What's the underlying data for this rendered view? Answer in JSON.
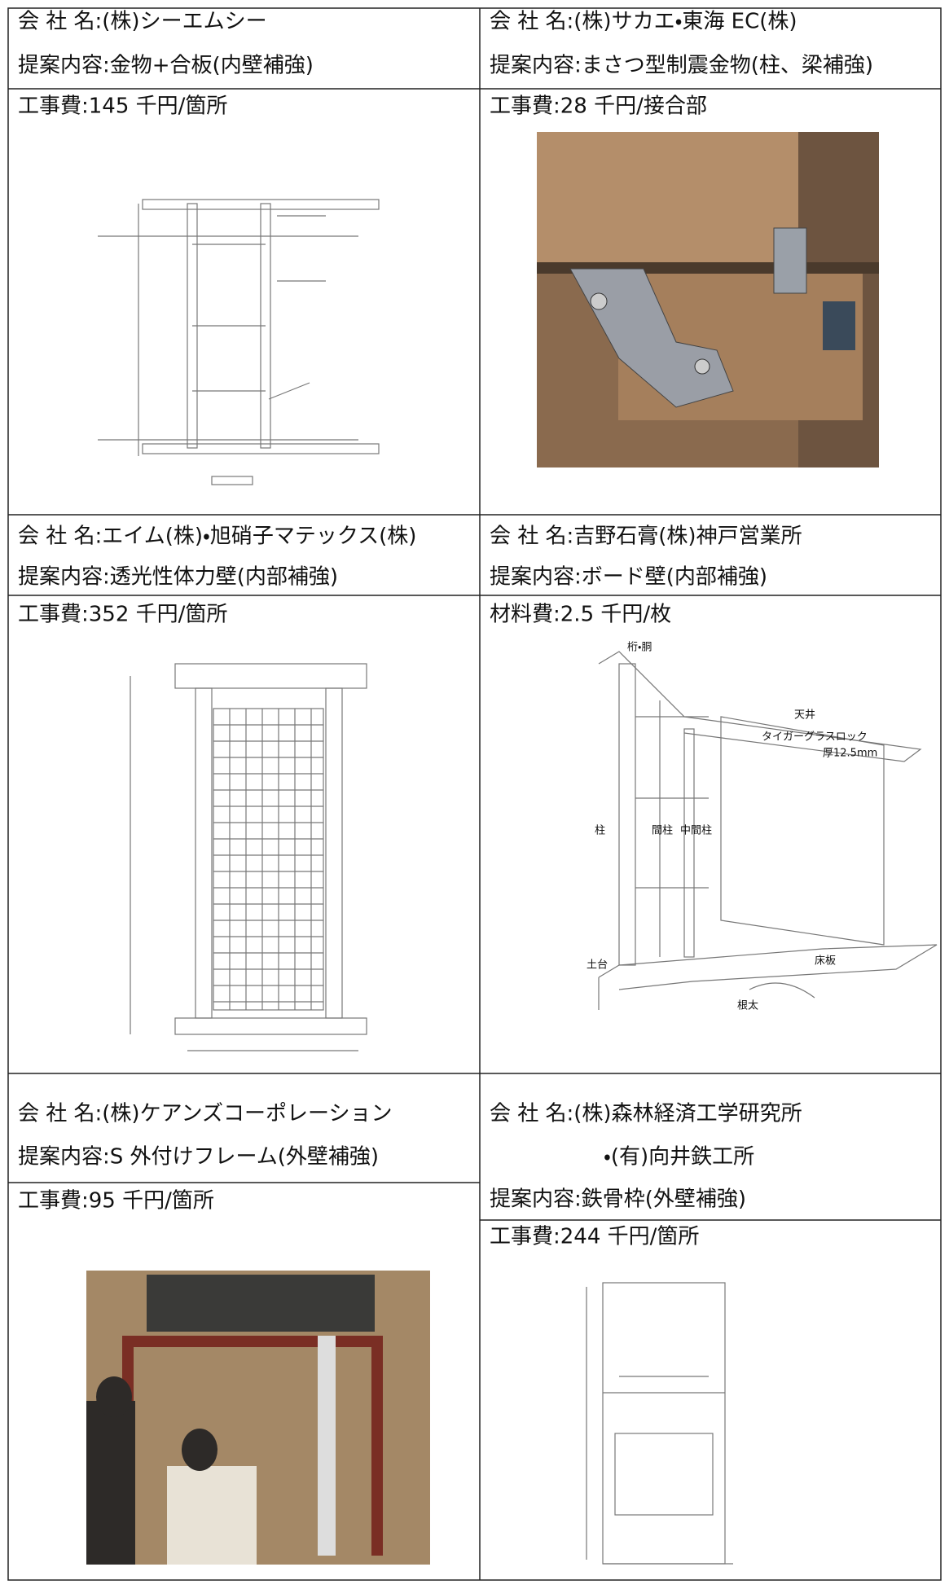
{
  "proposals": [
    {
      "company": [
        "会 社 名:(株)シーエムシー"
      ],
      "proposal": "提案内容:金物+合板(内壁補強)",
      "cost": "工事費:145 千円/箇所"
    },
    {
      "company": [
        "会 社 名:(株)サカエ・東海 EC(株)"
      ],
      "proposal": "提案内容:まさつ型制震金物(柱、梁補強)",
      "cost": "工事費:28 千円/接合部"
    },
    {
      "company": [
        "会 社 名:エイム(株)・旭硝子マテックス(株)"
      ],
      "proposal": "提案内容:透光性体力壁(内部補強)",
      "cost": "工事費:352 千円/箇所"
    },
    {
      "company": [
        "会 社 名:吉野石膏(株)神戸営業所"
      ],
      "proposal": "提案内容:ボード壁(内部補強)",
      "cost": "材料費:2.5 千円/枚",
      "figure_labels": [
        "桁・胴",
        "天井",
        "柱",
        "間柱",
        "中間柱",
        "土台",
        "床板",
        "根太",
        "タイガーグラスロック",
        "厚12.5mm"
      ]
    },
    {
      "company": [
        "会 社 名:(株)ケアンズコーポレーション"
      ],
      "proposal": "提案内容:S 外付けフレーム(外壁補強)",
      "cost": "工事費:95 千円/箇所"
    },
    {
      "company": [
        "会 社 名:(株)森林経済工学研究所",
        "・(有)向井鉄工所"
      ],
      "proposal": "提案内容:鉄骨枠(外壁補強)",
      "cost": "工事費:244 千円/箇所"
    }
  ]
}
